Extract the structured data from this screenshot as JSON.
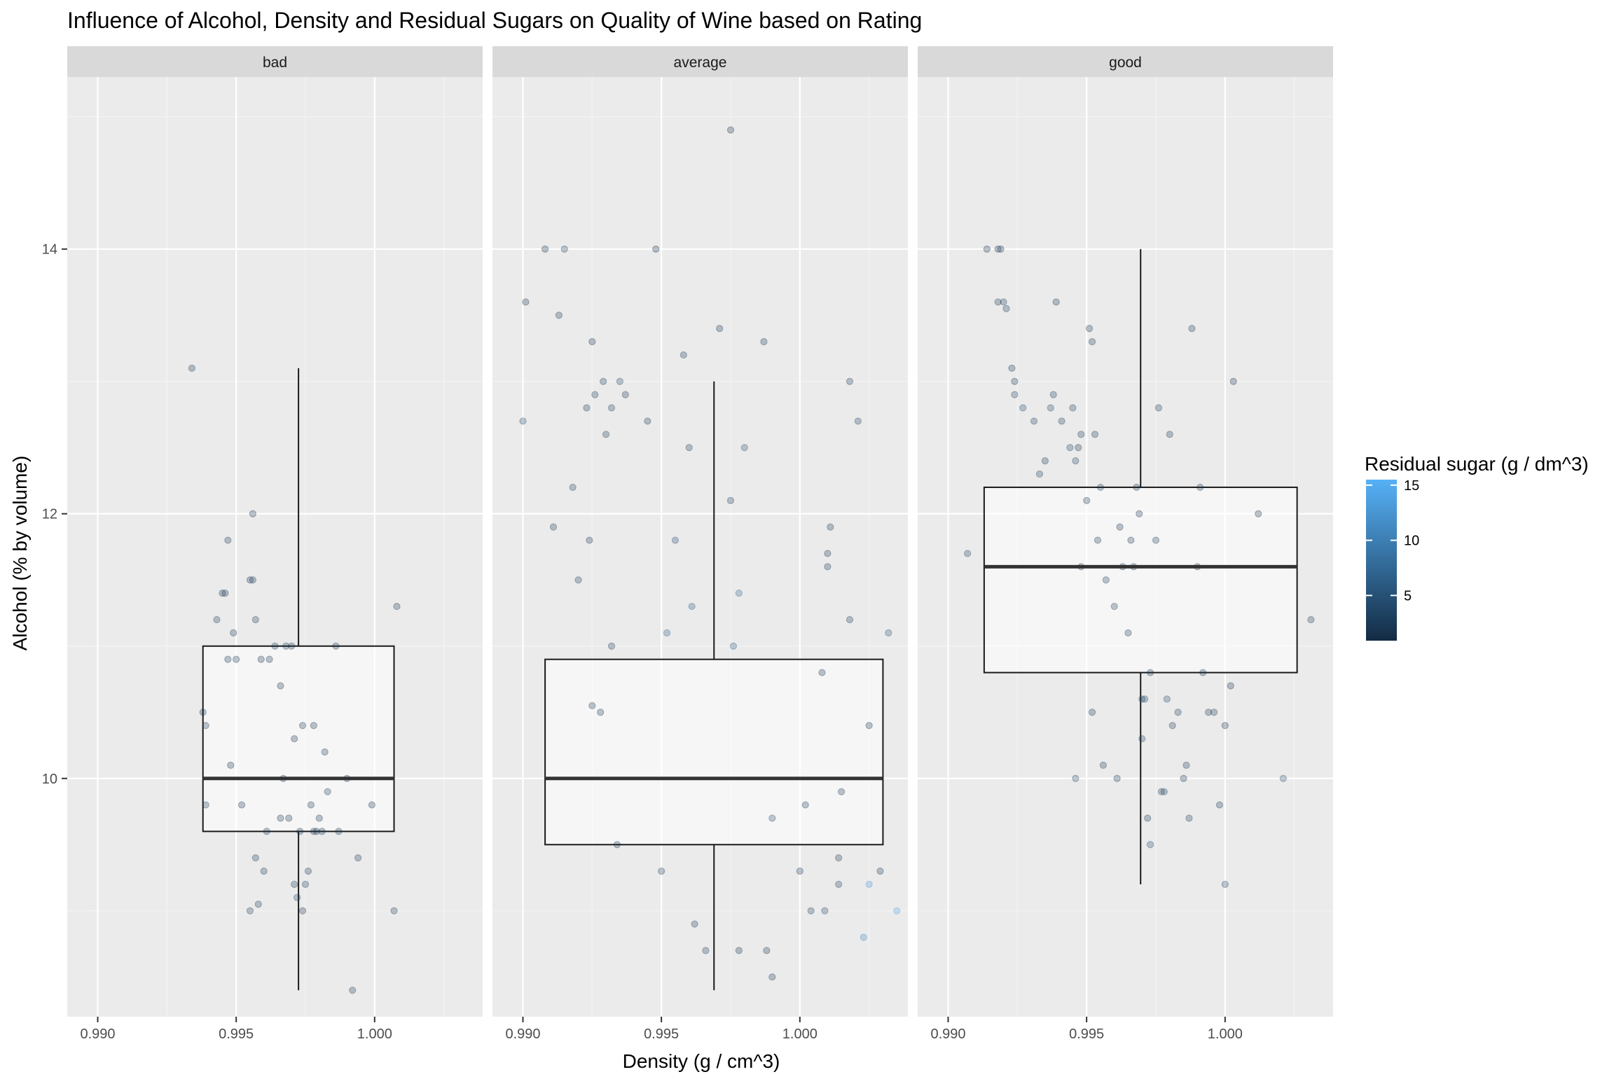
{
  "chart_data": {
    "type": "scatter",
    "title": "Influence of Alcohol, Density and Residual Sugars on Quality of Wine based on Rating",
    "xlabel": "Density (g / cm^3)",
    "ylabel": "Alcohol (% by volume)",
    "xlim": [
      0.9889,
      1.0039
    ],
    "ylim": [
      8.2,
      15.3
    ],
    "x_ticks": [
      "0.990",
      "0.995",
      "1.000"
    ],
    "y_ticks": [
      "10",
      "12",
      "14"
    ],
    "grid": true,
    "legend": {
      "title": "Residual sugar (g / dm^3)",
      "position": "right",
      "ticks": [
        "5",
        "10",
        "15"
      ],
      "range": [
        0.9,
        15.5
      ],
      "color_low": "#132B43",
      "color_high": "#56B1F7"
    },
    "facets": [
      {
        "label": "bad",
        "box": {
          "x": 0.99725,
          "width": 0.0069,
          "whisker_low": 8.4,
          "q1": 9.6,
          "median": 10.0,
          "q3": 11.0,
          "whisker_high": 13.1
        },
        "points": [
          [
            0.9934,
            13.1,
            2
          ],
          [
            0.9938,
            10.5,
            1.5
          ],
          [
            0.9939,
            10.4,
            2
          ],
          [
            0.9939,
            9.8,
            1.8
          ],
          [
            0.9943,
            11.2,
            2.5
          ],
          [
            0.9945,
            11.4,
            2
          ],
          [
            0.9946,
            11.4,
            1.8
          ],
          [
            0.9947,
            10.9,
            2
          ],
          [
            0.9947,
            11.8,
            2.2
          ],
          [
            0.9948,
            10.1,
            1.5
          ],
          [
            0.9949,
            11.1,
            2
          ],
          [
            0.995,
            10.9,
            2.3
          ],
          [
            0.9952,
            9.8,
            1.9
          ],
          [
            0.9955,
            11.5,
            2.4
          ],
          [
            0.9956,
            11.5,
            2.1
          ],
          [
            0.9956,
            12.0,
            2
          ],
          [
            0.9957,
            11.2,
            2.6
          ],
          [
            0.9957,
            9.4,
            2.1
          ],
          [
            0.9955,
            9.0,
            2.8
          ],
          [
            0.9958,
            9.05,
            2.5
          ],
          [
            0.9959,
            10.9,
            1.8
          ],
          [
            0.996,
            9.3,
            2.2
          ],
          [
            0.9961,
            9.6,
            1.9
          ],
          [
            0.9962,
            10.9,
            2
          ],
          [
            0.9964,
            11.0,
            2.5
          ],
          [
            0.9966,
            10.7,
            1.6
          ],
          [
            0.9966,
            9.7,
            2
          ],
          [
            0.9967,
            10.0,
            2.2
          ],
          [
            0.9968,
            11.0,
            2.4
          ],
          [
            0.9969,
            9.7,
            2
          ],
          [
            0.997,
            11.0,
            2.1
          ],
          [
            0.9971,
            9.2,
            2.5
          ],
          [
            0.9971,
            10.3,
            1.7
          ],
          [
            0.9972,
            9.1,
            3.5
          ],
          [
            0.9973,
            9.6,
            2
          ],
          [
            0.9974,
            10.4,
            2.2
          ],
          [
            0.9974,
            9.0,
            1.9
          ],
          [
            0.9975,
            9.2,
            2.3
          ],
          [
            0.9976,
            9.3,
            2.1
          ],
          [
            0.9977,
            9.8,
            2
          ],
          [
            0.9978,
            10.4,
            1.7
          ],
          [
            0.9978,
            9.6,
            2
          ],
          [
            0.9979,
            9.6,
            2.2
          ],
          [
            0.998,
            9.7,
            1.8
          ],
          [
            0.9981,
            9.6,
            1.9
          ],
          [
            0.9982,
            10.2,
            2.1
          ],
          [
            0.9983,
            9.9,
            2.6
          ],
          [
            0.9986,
            11.0,
            2
          ],
          [
            0.9987,
            9.6,
            2.2
          ],
          [
            0.999,
            10.0,
            1.8
          ],
          [
            0.9992,
            8.4,
            2.5
          ],
          [
            0.9994,
            9.4,
            2.1
          ],
          [
            0.9999,
            9.8,
            1.6
          ],
          [
            1.0007,
            9.0,
            2.4
          ],
          [
            1.0008,
            11.3,
            2
          ]
        ]
      },
      {
        "label": "average",
        "box": {
          "x": 0.9969,
          "width": 0.0122,
          "whisker_low": 8.4,
          "q1": 9.5,
          "median": 10.0,
          "q3": 10.9,
          "whisker_high": 13.0
        },
        "points": [
          [
            0.99,
            12.7,
            4
          ],
          [
            0.9901,
            13.6,
            2
          ],
          [
            0.9908,
            14.0,
            1.6
          ],
          [
            0.9915,
            14.0,
            3.5
          ],
          [
            0.9913,
            13.5,
            2
          ],
          [
            0.9911,
            11.9,
            2.2
          ],
          [
            0.992,
            11.5,
            2.4
          ],
          [
            0.9925,
            13.3,
            1.9
          ],
          [
            0.9923,
            12.8,
            2.1
          ],
          [
            0.9926,
            12.9,
            3
          ],
          [
            0.9929,
            13.0,
            2.4
          ],
          [
            0.9932,
            12.8,
            2.7
          ],
          [
            0.9935,
            13.0,
            4
          ],
          [
            0.9937,
            12.9,
            2.2
          ],
          [
            0.9948,
            14.0,
            1.5
          ],
          [
            0.9958,
            13.2,
            2.1
          ],
          [
            0.9971,
            13.4,
            1.8
          ],
          [
            0.9975,
            14.9,
            1.9
          ],
          [
            0.9987,
            13.3,
            2
          ],
          [
            1.0018,
            13.0,
            2.6
          ],
          [
            1.0021,
            12.7,
            3
          ],
          [
            1.0011,
            11.9,
            2.3
          ],
          [
            1.001,
            11.7,
            2.2
          ],
          [
            1.001,
            11.6,
            2.4
          ],
          [
            1.0008,
            10.8,
            1.7
          ],
          [
            1.0018,
            11.2,
            2.1
          ],
          [
            1.0032,
            11.1,
            5
          ],
          [
            1.0035,
            9.0,
            14
          ],
          [
            1.0029,
            9.3,
            2.5
          ],
          [
            1.0025,
            9.2,
            12.5
          ],
          [
            1.0023,
            8.8,
            11
          ],
          [
            1.0014,
            9.2,
            3
          ],
          [
            1.0009,
            9.0,
            3.5
          ],
          [
            1.0004,
            9.0,
            3.2
          ],
          [
            1.0,
            9.3,
            2.4
          ],
          [
            0.9988,
            8.7,
            2.2
          ],
          [
            0.999,
            8.5,
            2
          ],
          [
            0.9978,
            8.7,
            1.8
          ],
          [
            0.9962,
            8.9,
            2.5
          ],
          [
            0.9966,
            8.7,
            2.6
          ],
          [
            0.995,
            9.3,
            3
          ],
          [
            0.999,
            9.7,
            4
          ],
          [
            1.0002,
            9.8,
            2.6
          ],
          [
            1.0025,
            10.4,
            1.6
          ],
          [
            1.0015,
            9.9,
            2.1
          ],
          [
            1.0014,
            9.4,
            2
          ],
          [
            0.998,
            12.5,
            4.5
          ],
          [
            0.9975,
            12.1,
            2.5
          ],
          [
            0.996,
            12.5,
            2.4
          ],
          [
            0.9945,
            12.7,
            2
          ],
          [
            0.993,
            12.6,
            2.3
          ],
          [
            0.9918,
            12.2,
            2.6
          ],
          [
            0.9924,
            11.8,
            2.2
          ],
          [
            0.9932,
            11.0,
            2.1
          ],
          [
            0.9925,
            10.55,
            1.9
          ],
          [
            0.9928,
            10.5,
            2
          ],
          [
            0.9934,
            9.5,
            1.8
          ],
          [
            0.9976,
            11.0,
            6
          ],
          [
            0.9978,
            11.4,
            7
          ],
          [
            0.9961,
            11.3,
            5.5
          ],
          [
            0.9955,
            11.8,
            4.2
          ],
          [
            0.9952,
            11.1,
            6.5
          ]
        ]
      },
      {
        "label": "good",
        "box": {
          "x": 0.99695,
          "width": 0.0113,
          "whisker_low": 9.2,
          "q1": 10.8,
          "median": 11.6,
          "q3": 12.2,
          "whisker_high": 14.0
        },
        "points": [
          [
            0.9907,
            11.7,
            3
          ],
          [
            0.9914,
            14.0,
            2
          ],
          [
            0.9918,
            14.0,
            2.2
          ],
          [
            0.9919,
            14.0,
            2.5
          ],
          [
            0.992,
            13.6,
            2.4
          ],
          [
            0.9921,
            13.55,
            2.6
          ],
          [
            0.9918,
            13.6,
            2.1
          ],
          [
            0.9923,
            13.1,
            2
          ],
          [
            0.9924,
            13.0,
            2.3
          ],
          [
            0.9924,
            12.9,
            3.5
          ],
          [
            0.9927,
            12.8,
            4
          ],
          [
            0.9931,
            12.7,
            3
          ],
          [
            0.9933,
            12.3,
            2.7
          ],
          [
            0.9935,
            12.4,
            2.2
          ],
          [
            0.9937,
            12.8,
            3.6
          ],
          [
            0.9938,
            12.9,
            2.5
          ],
          [
            0.9939,
            13.6,
            1.8
          ],
          [
            0.9941,
            12.7,
            2.3
          ],
          [
            0.9944,
            12.5,
            3.1
          ],
          [
            0.9945,
            12.8,
            2.6
          ],
          [
            0.9946,
            12.4,
            3.5
          ],
          [
            0.9947,
            12.5,
            2.2
          ],
          [
            0.9948,
            12.6,
            2.4
          ],
          [
            0.9948,
            11.6,
            2
          ],
          [
            0.995,
            12.1,
            2.3
          ],
          [
            0.9951,
            13.4,
            2
          ],
          [
            0.9952,
            13.3,
            2.1
          ],
          [
            0.9953,
            12.6,
            2.3
          ],
          [
            0.9954,
            11.8,
            2.1
          ],
          [
            0.9955,
            12.2,
            2.5
          ],
          [
            0.9957,
            11.5,
            2.2
          ],
          [
            0.996,
            11.3,
            2.4
          ],
          [
            0.9962,
            11.9,
            1.8
          ],
          [
            0.9963,
            11.6,
            2.3
          ],
          [
            0.9965,
            11.1,
            2.1
          ],
          [
            0.9966,
            11.8,
            2
          ],
          [
            0.9967,
            11.6,
            2.4
          ],
          [
            0.9968,
            12.2,
            1.8
          ],
          [
            0.9969,
            12.0,
            1.9
          ],
          [
            0.997,
            10.6,
            4
          ],
          [
            0.997,
            10.3,
            3.5
          ],
          [
            0.9971,
            10.6,
            3.8
          ],
          [
            0.9972,
            9.7,
            2.4
          ],
          [
            0.9973,
            9.5,
            4
          ],
          [
            0.9973,
            10.8,
            2
          ],
          [
            0.9975,
            11.8,
            2.5
          ],
          [
            0.9976,
            12.8,
            2
          ],
          [
            0.9977,
            9.9,
            3
          ],
          [
            0.9978,
            9.9,
            3.5
          ],
          [
            0.9979,
            10.6,
            4
          ],
          [
            0.998,
            12.6,
            2.2
          ],
          [
            0.9981,
            10.4,
            2.1
          ],
          [
            0.9983,
            10.5,
            2.5
          ],
          [
            0.9985,
            10.0,
            2.2
          ],
          [
            0.9986,
            10.1,
            2
          ],
          [
            0.9987,
            9.7,
            2.6
          ],
          [
            0.9988,
            13.4,
            2.1
          ],
          [
            0.999,
            11.6,
            1.9
          ],
          [
            0.9991,
            12.2,
            2.2
          ],
          [
            0.9992,
            10.8,
            2
          ],
          [
            0.9994,
            10.5,
            2.2
          ],
          [
            0.9996,
            10.5,
            2.1
          ],
          [
            0.9998,
            9.8,
            2
          ],
          [
            1.0,
            10.4,
            1.9
          ],
          [
            1.0,
            9.2,
            4
          ],
          [
            1.0002,
            10.7,
            1.8
          ],
          [
            1.0003,
            13.0,
            2
          ],
          [
            1.0012,
            12.0,
            1.7
          ],
          [
            1.0021,
            10.0,
            5
          ],
          [
            1.0031,
            11.2,
            2.3
          ],
          [
            0.9946,
            10.0,
            4
          ],
          [
            0.9956,
            10.1,
            2.2
          ],
          [
            0.9961,
            10.0,
            2.4
          ],
          [
            0.9952,
            10.5,
            2
          ]
        ]
      }
    ]
  }
}
